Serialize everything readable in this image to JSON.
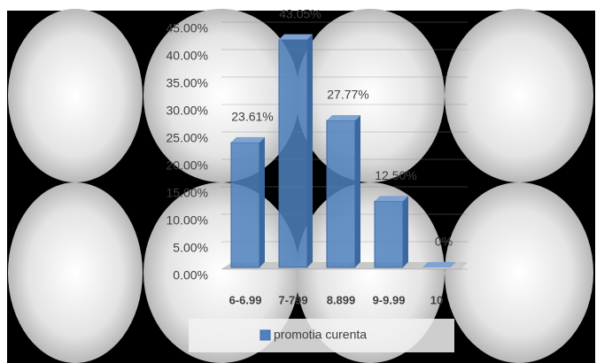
{
  "chart_data": {
    "type": "bar",
    "categories": [
      "6-6.99",
      "7-799",
      "8.899",
      "9-9.99",
      "10"
    ],
    "series": [
      {
        "name": "promotia curenta",
        "color": "#4f81bd",
        "values": [
          23.61,
          43.05,
          27.77,
          12.5,
          0
        ],
        "value_labels": [
          "23.61%",
          "43.05%",
          "27.77%",
          "12.50%",
          "0%"
        ]
      }
    ],
    "ylim": [
      0,
      45
    ],
    "yticks": [
      {
        "value": 0,
        "label": "0.00%"
      },
      {
        "value": 5,
        "label": "5.00%"
      },
      {
        "value": 10,
        "label": "10.00%"
      },
      {
        "value": 15,
        "label": "15.00%"
      },
      {
        "value": 20,
        "label": "20.00%"
      },
      {
        "value": 25,
        "label": "25.00%"
      },
      {
        "value": 30,
        "label": "30.00%"
      },
      {
        "value": 35,
        "label": "35.00%"
      },
      {
        "value": 40,
        "label": "40.00%"
      },
      {
        "value": 45,
        "label": "45.00%"
      }
    ],
    "grid": true,
    "legend": "bottom"
  }
}
